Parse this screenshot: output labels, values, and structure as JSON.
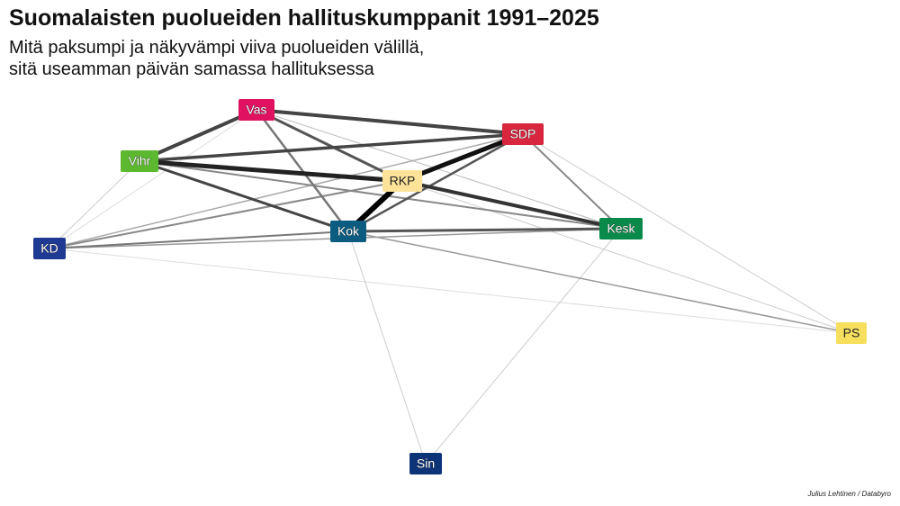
{
  "header": {
    "title": "Suomalaisten puolueiden hallituskumppanit 1991–2025",
    "subtitle": [
      "Mitä paksumpi ja näkyvämpi viiva puolueiden välillä,",
      "sitä useamman päivän samassa hallituksessa"
    ]
  },
  "nodes": [
    {
      "label": "Vas"
    },
    {
      "label": "SDP"
    },
    {
      "label": "Vihr"
    },
    {
      "label": "RKP"
    },
    {
      "label": "Kok"
    },
    {
      "label": "Kesk"
    },
    {
      "label": "KD"
    },
    {
      "label": "PS"
    },
    {
      "label": "Sin"
    }
  ],
  "credit": "Julius Lehtinen / Databyro"
}
